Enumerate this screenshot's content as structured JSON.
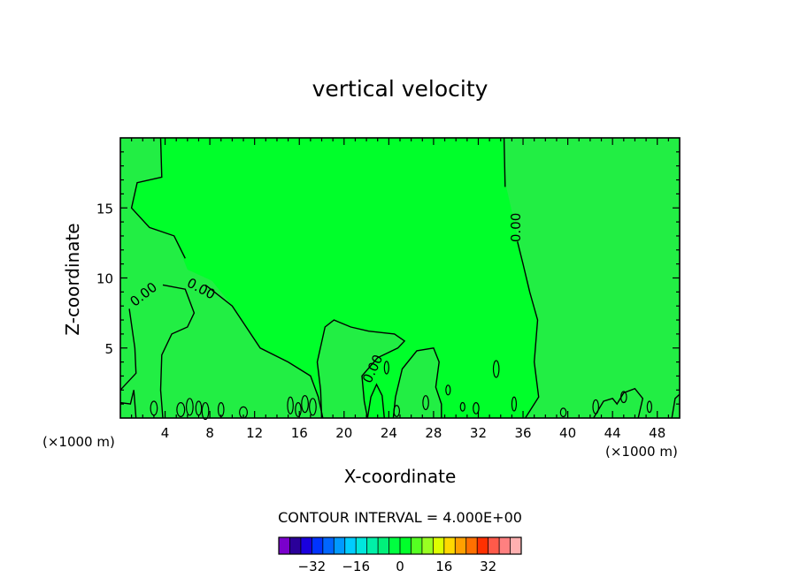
{
  "chart_data": {
    "type": "contour",
    "title": "vertical velocity",
    "xlabel": "X-coordinate",
    "ylabel": "Z-coordinate",
    "x_unit_left": "(×1000 m)",
    "x_unit_right": "(×1000 m)",
    "xlim": [
      0,
      50
    ],
    "ylim": [
      0,
      20
    ],
    "x_ticks": [
      4,
      8,
      12,
      16,
      20,
      24,
      28,
      32,
      36,
      40,
      44,
      48
    ],
    "y_ticks": [
      5,
      10,
      15
    ],
    "fill_color": "#00ff2a",
    "weak_fill_color": "#22ee44",
    "contour_label": "0.00",
    "contour_interval_text": "CONTOUR INTERVAL = 4.000E+00",
    "colorbar": {
      "colors": [
        "#7a00cc",
        "#2a0099",
        "#1a00dd",
        "#0033ff",
        "#0066ff",
        "#0099ff",
        "#00ccff",
        "#00e6dd",
        "#00f0a8",
        "#00f07a",
        "#00ff40",
        "#00ff2a",
        "#55ff22",
        "#99ff22",
        "#ddff00",
        "#ffd800",
        "#ffa000",
        "#ff7000",
        "#ff3000",
        "#ff5a4a",
        "#ff8080",
        "#ffb0b0"
      ],
      "tick_labels": [
        "-32",
        "-16",
        "0",
        "16",
        "32"
      ],
      "tick_values": [
        -32,
        -16,
        0,
        16,
        32
      ]
    }
  }
}
